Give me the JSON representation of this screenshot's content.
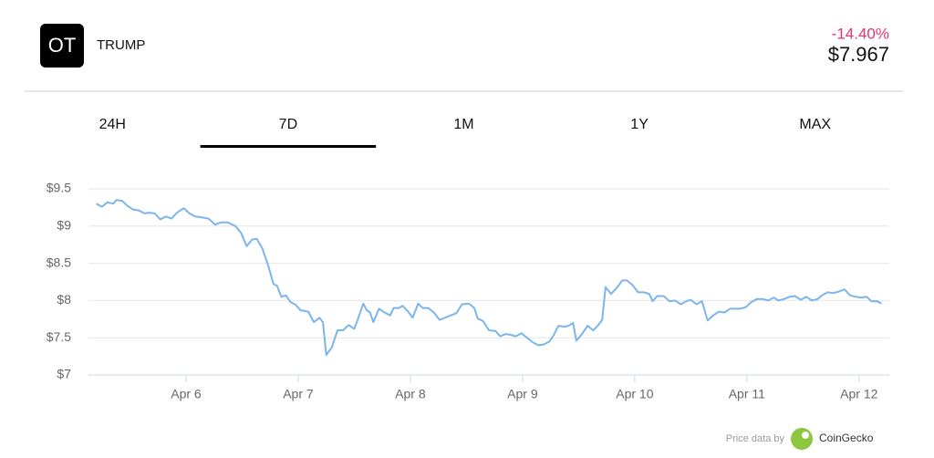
{
  "header": {
    "logo": "OT",
    "name": "TRUMP",
    "change": "-14.40%",
    "change_color": "#e8336e",
    "price": "$7.967"
  },
  "tabs": [
    "24H",
    "7D",
    "1M",
    "1Y",
    "MAX"
  ],
  "active_tab": 1,
  "footer": {
    "credit": "Price data by",
    "source": "CoinGecko"
  },
  "chart_data": {
    "type": "line",
    "color": "#7cb5ec",
    "x": [
      5.2,
      5.25,
      5.3,
      5.35,
      5.38,
      5.43,
      5.48,
      5.53,
      5.58,
      5.63,
      5.67,
      5.72,
      5.77,
      5.82,
      5.87,
      5.92,
      5.98,
      6.03,
      6.08,
      6.13,
      6.2,
      6.26,
      6.31,
      6.37,
      6.44,
      6.49,
      6.54,
      6.59,
      6.63,
      6.68,
      6.73,
      6.78,
      6.81,
      6.85,
      6.89,
      6.93,
      6.98,
      7.02,
      7.09,
      7.14,
      7.19,
      7.22,
      7.25,
      7.3,
      7.35,
      7.4,
      7.45,
      7.5,
      7.53,
      7.58,
      7.61,
      7.64,
      7.67,
      7.72,
      7.77,
      7.82,
      7.85,
      7.9,
      7.93,
      7.98,
      8.02,
      8.07,
      8.11,
      8.16,
      8.21,
      8.26,
      8.31,
      8.36,
      8.41,
      8.46,
      8.52,
      8.57,
      8.6,
      8.65,
      8.7,
      8.76,
      8.8,
      8.85,
      8.89,
      8.94,
      8.99,
      9.04,
      9.09,
      9.14,
      9.19,
      9.24,
      9.28,
      9.32,
      9.37,
      9.41,
      9.45,
      9.48,
      9.53,
      9.58,
      9.63,
      9.67,
      9.71,
      9.74,
      9.79,
      9.84,
      9.89,
      9.93,
      9.98,
      10.03,
      10.08,
      10.13,
      10.16,
      10.2,
      10.26,
      10.31,
      10.36,
      10.41,
      10.46,
      10.5,
      10.55,
      10.6,
      10.65,
      10.7,
      10.75,
      10.8,
      10.85,
      10.89,
      10.94,
      10.99,
      11.04,
      11.09,
      11.14,
      11.19,
      11.24,
      11.28,
      11.33,
      11.38,
      11.43,
      11.48,
      11.53,
      11.58,
      11.63,
      11.67,
      11.72,
      11.77,
      11.82,
      11.87,
      11.92,
      11.97,
      12.02,
      12.07,
      12.11,
      12.16,
      12.2
    ],
    "values": [
      9.3,
      9.26,
      9.32,
      9.3,
      9.35,
      9.34,
      9.27,
      9.22,
      9.21,
      9.17,
      9.18,
      9.17,
      9.09,
      9.13,
      9.1,
      9.18,
      9.24,
      9.17,
      9.13,
      9.12,
      9.1,
      9.02,
      9.05,
      9.05,
      9.0,
      8.91,
      8.73,
      8.82,
      8.83,
      8.7,
      8.48,
      8.22,
      8.2,
      8.05,
      8.07,
      7.98,
      7.94,
      7.87,
      7.85,
      7.71,
      7.77,
      7.71,
      7.27,
      7.37,
      7.6,
      7.6,
      7.67,
      7.62,
      7.74,
      7.96,
      7.87,
      7.84,
      7.71,
      7.89,
      7.84,
      7.8,
      7.9,
      7.9,
      7.93,
      7.85,
      7.77,
      7.96,
      7.9,
      7.9,
      7.84,
      7.74,
      7.77,
      7.8,
      7.83,
      7.95,
      7.96,
      7.9,
      7.76,
      7.72,
      7.6,
      7.59,
      7.52,
      7.55,
      7.54,
      7.52,
      7.56,
      7.5,
      7.44,
      7.4,
      7.41,
      7.45,
      7.54,
      7.66,
      7.65,
      7.66,
      7.7,
      7.46,
      7.55,
      7.66,
      7.6,
      7.66,
      7.74,
      8.18,
      8.09,
      8.17,
      8.27,
      8.27,
      8.21,
      8.11,
      8.11,
      8.09,
      7.99,
      8.06,
      8.06,
      7.99,
      8.0,
      7.95,
      7.99,
      8.01,
      7.95,
      7.99,
      7.73,
      7.8,
      7.85,
      7.84,
      7.89,
      7.89,
      7.89,
      7.91,
      7.98,
      8.02,
      8.02,
      8.0,
      8.04,
      8.0,
      8.02,
      8.05,
      8.06,
      8.01,
      8.05,
      8.0,
      8.02,
      8.07,
      8.11,
      8.1,
      8.12,
      8.15,
      8.07,
      8.05,
      8.04,
      8.05,
      7.99,
      7.99,
      7.96
    ],
    "xlim": [
      5.13,
      12.27
    ],
    "xticks": [
      {
        "value": 6,
        "label": "Apr 6"
      },
      {
        "value": 7,
        "label": "Apr 7"
      },
      {
        "value": 8,
        "label": "Apr 8"
      },
      {
        "value": 9,
        "label": "Apr 9"
      },
      {
        "value": 10,
        "label": "Apr 10"
      },
      {
        "value": 11,
        "label": "Apr 11"
      },
      {
        "value": 12,
        "label": "Apr 12"
      }
    ],
    "ylim": [
      7,
      9.5
    ],
    "yticks": [
      {
        "value": 7,
        "label": "$7"
      },
      {
        "value": 7.5,
        "label": "$7.5"
      },
      {
        "value": 8,
        "label": "$8"
      },
      {
        "value": 8.5,
        "label": "$8.5"
      },
      {
        "value": 9,
        "label": "$9"
      },
      {
        "value": 9.5,
        "label": "$9.5"
      }
    ],
    "grid": true
  }
}
